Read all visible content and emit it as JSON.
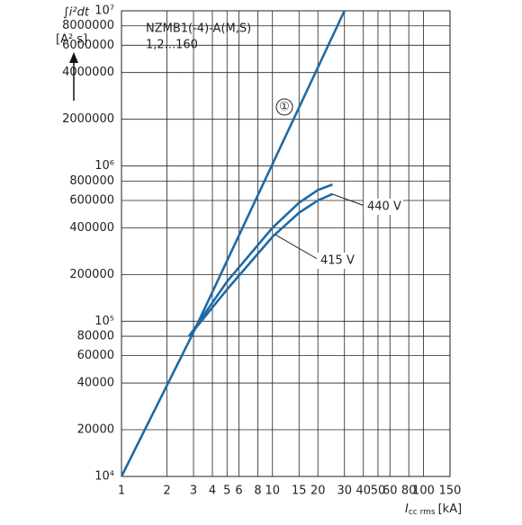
{
  "chart_data": {
    "type": "line",
    "log_x": true,
    "log_y": true,
    "grid": true,
    "ylabel": "∫i²dt",
    "yunit": "[A² s]",
    "title": "NZMB1(-4)-A(M,S)",
    "subtitle": "1,2...160",
    "xlabel": {
      "symbol": "I",
      "subscript": "cc rms",
      "unit": "[kA]"
    },
    "xlim": [
      1,
      150
    ],
    "ylim": [
      10000,
      10000000
    ],
    "xticks": [
      1,
      2,
      3,
      4,
      5,
      6,
      8,
      10,
      15,
      20,
      30,
      40,
      50,
      60,
      80,
      100,
      150
    ],
    "yticks": [
      {
        "value": 10000,
        "label": "10⁴"
      },
      20000,
      40000,
      60000,
      80000,
      {
        "value": 100000,
        "label": "10⁵"
      },
      200000,
      400000,
      600000,
      800000,
      {
        "value": 1000000,
        "label": "10⁶"
      },
      2000000,
      4000000,
      6000000,
      8000000,
      {
        "value": 10000000,
        "label": "10⁷"
      }
    ],
    "series": [
      {
        "name": "①",
        "color": "#1f6aa5",
        "x": [
          1,
          3,
          30
        ],
        "values": [
          10000,
          85000,
          10000000
        ]
      },
      {
        "name": "440 V",
        "color": "#1f6aa5",
        "x": [
          2.8,
          5,
          10,
          15,
          20,
          25
        ],
        "values": [
          80000,
          180000,
          400000,
          580000,
          700000,
          760000
        ]
      },
      {
        "name": "415 V",
        "color": "#1f6aa5",
        "x": [
          2.8,
          5,
          10,
          15,
          20,
          25
        ],
        "values": [
          80000,
          160000,
          350000,
          500000,
          600000,
          660000
        ]
      }
    ]
  }
}
